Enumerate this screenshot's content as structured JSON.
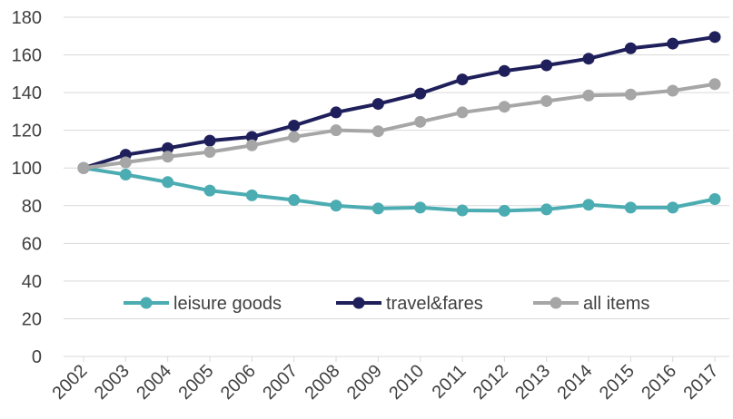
{
  "chart_data": {
    "type": "line",
    "title": "",
    "xlabel": "",
    "ylabel": "",
    "x": [
      "2002",
      "2003",
      "2004",
      "2005",
      "2006",
      "2007",
      "2008",
      "2009",
      "2010",
      "2011",
      "2012",
      "2013",
      "2014",
      "2015",
      "2016",
      "2017"
    ],
    "ylim": [
      0,
      180
    ],
    "yticks": [
      0,
      20,
      40,
      60,
      80,
      100,
      120,
      140,
      160,
      180
    ],
    "grid": true,
    "legend_position": "inside-bottom",
    "series": [
      {
        "name": "leisure goods",
        "color": "#4bacb2",
        "values": [
          100,
          96.5,
          92.5,
          88,
          85.5,
          83,
          80,
          78.5,
          79,
          77.5,
          77.3,
          78,
          80.5,
          79,
          79,
          83.5
        ]
      },
      {
        "name": "travel&fares",
        "color": "#1f1f5b",
        "values": [
          100,
          107,
          110.5,
          114.5,
          116.5,
          122.5,
          129.5,
          134,
          139.5,
          147,
          151.5,
          154.5,
          158,
          163.5,
          166,
          169.5
        ]
      },
      {
        "name": "all items",
        "color": "#a6a6a6",
        "values": [
          100,
          103,
          106,
          108.5,
          112,
          116.5,
          120,
          119.5,
          124.5,
          129.5,
          132.5,
          135.5,
          138.5,
          139,
          141,
          144.5
        ]
      }
    ]
  }
}
